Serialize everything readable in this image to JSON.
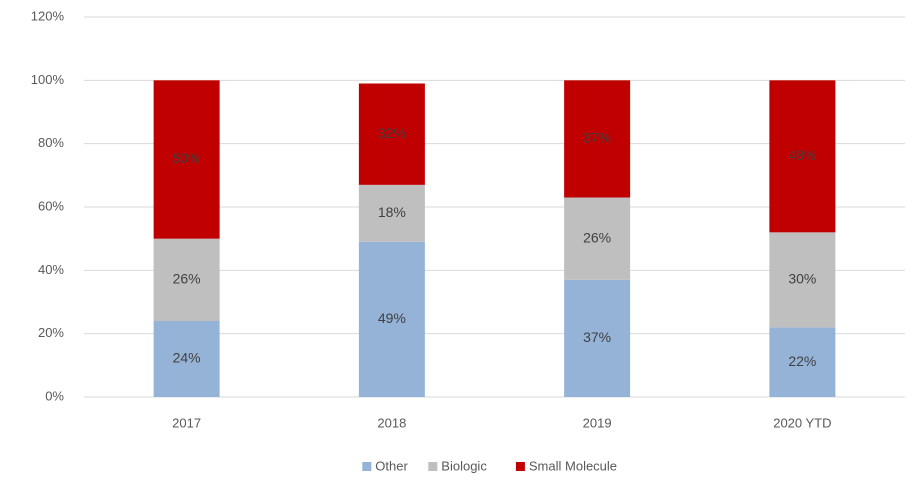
{
  "chart_data": {
    "type": "stacked_bar",
    "categories": [
      "2017",
      "2018",
      "2019",
      "2020 YTD"
    ],
    "series": [
      {
        "name": "Other",
        "color": "#95b3d7",
        "values": [
          24,
          49,
          37,
          22
        ],
        "value_labels": [
          "24%",
          "49%",
          "37%",
          "22%"
        ]
      },
      {
        "name": "Biologic",
        "color": "#bfbfbf",
        "values": [
          26,
          18,
          26,
          30
        ],
        "value_labels": [
          "26%",
          "18%",
          "26%",
          "30%"
        ]
      },
      {
        "name": "Small Molecule",
        "color": "#c00000",
        "values": [
          50,
          32,
          37,
          48
        ],
        "value_labels": [
          "50%",
          "32%",
          "37%",
          "48%"
        ]
      }
    ],
    "ylim": [
      0,
      120
    ],
    "yticks": [
      {
        "value": 0,
        "label": "0%"
      },
      {
        "value": 20,
        "label": "20%"
      },
      {
        "value": 40,
        "label": "40%"
      },
      {
        "value": 60,
        "label": "60%"
      },
      {
        "value": 80,
        "label": "80%"
      },
      {
        "value": 100,
        "label": "100%"
      },
      {
        "value": 120,
        "label": "120%"
      }
    ],
    "grid": true,
    "legend": "bottom"
  }
}
